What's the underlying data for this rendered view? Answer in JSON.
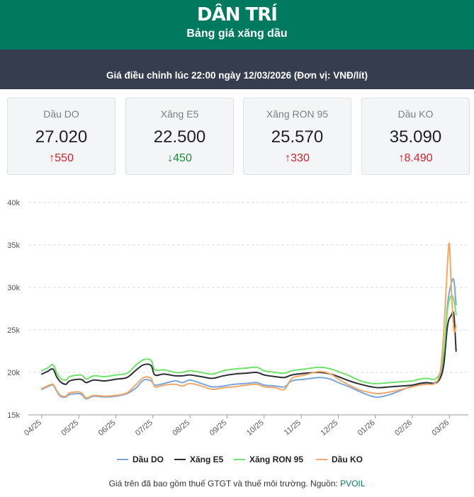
{
  "header": {
    "logo": "DÂN TRÍ",
    "title": "Bảng giá xăng dầu"
  },
  "info": {
    "text": "Giá điều chỉnh lúc 22:00 ngày 12/03/2026 (Đơn vị: VNĐ/lít)"
  },
  "cards": [
    {
      "label": "Dầu DO",
      "price": "27.020",
      "change": "550",
      "direction": "up"
    },
    {
      "label": "Xăng E5",
      "price": "22.500",
      "change": "450",
      "direction": "down"
    },
    {
      "label": "Xăng RON 95",
      "price": "25.570",
      "change": "330",
      "direction": "up"
    },
    {
      "label": "Dầu KO",
      "price": "35.090",
      "change": "8.490",
      "direction": "up"
    }
  ],
  "footer": {
    "text": "Giá trên đã bao gồm thuế GTGT và thuế môi trường. Nguồn: ",
    "source": "PVOIL"
  },
  "colors": {
    "header_bg": "#007a5e",
    "info_bg": "#363d4e",
    "up": "#d0222f",
    "down": "#1f8a3b"
  },
  "chart_data": {
    "type": "line",
    "title": "",
    "xlabel": "",
    "ylabel": "",
    "ylim": [
      15000,
      40000
    ],
    "yticks": [
      15000,
      20000,
      25000,
      30000,
      35000,
      40000
    ],
    "ytick_labels": [
      "15k",
      "20k",
      "25k",
      "30k",
      "35k",
      "40k"
    ],
    "xtick_labels": [
      "04/25",
      "05/25",
      "06/25",
      "07/25",
      "08/25",
      "09/25",
      "10/25",
      "11/25",
      "12/25",
      "01/26",
      "02/26",
      "03/26"
    ],
    "grid": true,
    "legend_position": "bottom",
    "series": [
      {
        "name": "Dầu DO",
        "color": "#7aa6d9",
        "values": [
          [
            0,
            18000
          ],
          [
            0.15,
            18300
          ],
          [
            0.3,
            18500
          ],
          [
            0.4,
            17800
          ],
          [
            0.5,
            17200
          ],
          [
            0.65,
            17100
          ],
          [
            0.75,
            17400
          ],
          [
            1.0,
            17500
          ],
          [
            1.1,
            17300
          ],
          [
            1.2,
            16900
          ],
          [
            1.4,
            17200
          ],
          [
            1.7,
            17100
          ],
          [
            2.0,
            17200
          ],
          [
            2.3,
            17500
          ],
          [
            2.55,
            18200
          ],
          [
            2.75,
            19100
          ],
          [
            2.95,
            19000
          ],
          [
            3.05,
            18500
          ],
          [
            3.3,
            18700
          ],
          [
            3.6,
            19000
          ],
          [
            3.8,
            18800
          ],
          [
            4.0,
            19100
          ],
          [
            4.3,
            18700
          ],
          [
            4.6,
            18300
          ],
          [
            4.9,
            18400
          ],
          [
            5.2,
            18600
          ],
          [
            5.5,
            18700
          ],
          [
            5.8,
            18800
          ],
          [
            6.0,
            18500
          ],
          [
            6.3,
            18400
          ],
          [
            6.55,
            18300
          ],
          [
            6.75,
            19000
          ],
          [
            7.1,
            19200
          ],
          [
            7.5,
            19400
          ],
          [
            7.8,
            19200
          ],
          [
            8.0,
            18800
          ],
          [
            8.3,
            18300
          ],
          [
            8.6,
            17700
          ],
          [
            8.9,
            17200
          ],
          [
            9.1,
            17100
          ],
          [
            9.4,
            17400
          ],
          [
            9.7,
            17900
          ],
          [
            10.0,
            18400
          ],
          [
            10.2,
            18600
          ],
          [
            10.4,
            18700
          ],
          [
            10.6,
            18800
          ],
          [
            10.75,
            19500
          ],
          [
            10.85,
            22000
          ],
          [
            10.95,
            28000
          ],
          [
            11.05,
            30500
          ],
          [
            11.12,
            30800
          ],
          [
            11.18,
            28000
          ]
        ]
      },
      {
        "name": "Xăng E5",
        "color": "#2e3036",
        "values": [
          [
            0,
            19800
          ],
          [
            0.15,
            20100
          ],
          [
            0.3,
            20400
          ],
          [
            0.4,
            19500
          ],
          [
            0.5,
            18900
          ],
          [
            0.65,
            18600
          ],
          [
            0.75,
            19000
          ],
          [
            1.0,
            19200
          ],
          [
            1.1,
            19100
          ],
          [
            1.2,
            18800
          ],
          [
            1.4,
            19100
          ],
          [
            1.7,
            19000
          ],
          [
            2.0,
            19200
          ],
          [
            2.3,
            19400
          ],
          [
            2.55,
            20300
          ],
          [
            2.75,
            20900
          ],
          [
            2.95,
            20800
          ],
          [
            3.05,
            19700
          ],
          [
            3.3,
            19800
          ],
          [
            3.6,
            19600
          ],
          [
            3.8,
            19600
          ],
          [
            4.0,
            19700
          ],
          [
            4.3,
            19500
          ],
          [
            4.6,
            19300
          ],
          [
            4.9,
            19600
          ],
          [
            5.2,
            19800
          ],
          [
            5.5,
            19900
          ],
          [
            5.8,
            20000
          ],
          [
            6.0,
            19700
          ],
          [
            6.3,
            19500
          ],
          [
            6.55,
            19400
          ],
          [
            6.75,
            19700
          ],
          [
            7.1,
            19900
          ],
          [
            7.5,
            20000
          ],
          [
            7.8,
            19800
          ],
          [
            8.0,
            19500
          ],
          [
            8.3,
            19000
          ],
          [
            8.6,
            18600
          ],
          [
            8.9,
            18300
          ],
          [
            9.1,
            18200
          ],
          [
            9.4,
            18300
          ],
          [
            9.7,
            18400
          ],
          [
            10.0,
            18500
          ],
          [
            10.2,
            18700
          ],
          [
            10.4,
            18800
          ],
          [
            10.6,
            18700
          ],
          [
            10.75,
            19300
          ],
          [
            10.85,
            21000
          ],
          [
            10.95,
            25500
          ],
          [
            11.05,
            26700
          ],
          [
            11.12,
            26800
          ],
          [
            11.18,
            22500
          ]
        ]
      },
      {
        "name": "Xăng RON 95",
        "color": "#6fe26a",
        "values": [
          [
            0,
            20200
          ],
          [
            0.15,
            20500
          ],
          [
            0.3,
            20900
          ],
          [
            0.4,
            20000
          ],
          [
            0.5,
            19300
          ],
          [
            0.65,
            19100
          ],
          [
            0.75,
            19500
          ],
          [
            1.0,
            19700
          ],
          [
            1.1,
            19600
          ],
          [
            1.2,
            19200
          ],
          [
            1.4,
            19600
          ],
          [
            1.7,
            19500
          ],
          [
            2.0,
            19700
          ],
          [
            2.3,
            19900
          ],
          [
            2.55,
            20900
          ],
          [
            2.75,
            21500
          ],
          [
            2.95,
            21400
          ],
          [
            3.05,
            20300
          ],
          [
            3.3,
            20300
          ],
          [
            3.6,
            20000
          ],
          [
            3.8,
            20000
          ],
          [
            4.0,
            20200
          ],
          [
            4.3,
            20000
          ],
          [
            4.6,
            19800
          ],
          [
            4.9,
            20200
          ],
          [
            5.2,
            20400
          ],
          [
            5.5,
            20500
          ],
          [
            5.8,
            20600
          ],
          [
            6.0,
            20200
          ],
          [
            6.3,
            20000
          ],
          [
            6.55,
            19900
          ],
          [
            6.75,
            20200
          ],
          [
            7.1,
            20400
          ],
          [
            7.5,
            20600
          ],
          [
            7.8,
            20400
          ],
          [
            8.0,
            20100
          ],
          [
            8.3,
            19600
          ],
          [
            8.6,
            19000
          ],
          [
            8.9,
            18700
          ],
          [
            9.1,
            18700
          ],
          [
            9.4,
            18800
          ],
          [
            9.7,
            18900
          ],
          [
            10.0,
            19000
          ],
          [
            10.2,
            19200
          ],
          [
            10.4,
            19300
          ],
          [
            10.6,
            19200
          ],
          [
            10.75,
            20000
          ],
          [
            10.85,
            22500
          ],
          [
            10.95,
            27500
          ],
          [
            11.05,
            29000
          ],
          [
            11.12,
            28500
          ],
          [
            11.18,
            26800
          ]
        ]
      },
      {
        "name": "Dầu KO",
        "color": "#f0a96a",
        "values": [
          [
            0,
            18100
          ],
          [
            0.15,
            18400
          ],
          [
            0.3,
            18600
          ],
          [
            0.4,
            17900
          ],
          [
            0.5,
            17300
          ],
          [
            0.65,
            17200
          ],
          [
            0.75,
            17600
          ],
          [
            1.0,
            17700
          ],
          [
            1.1,
            17500
          ],
          [
            1.2,
            17000
          ],
          [
            1.4,
            17300
          ],
          [
            1.7,
            17200
          ],
          [
            2.0,
            17300
          ],
          [
            2.3,
            17600
          ],
          [
            2.55,
            18600
          ],
          [
            2.75,
            19400
          ],
          [
            2.95,
            19300
          ],
          [
            3.05,
            18300
          ],
          [
            3.3,
            18500
          ],
          [
            3.6,
            18600
          ],
          [
            3.8,
            18400
          ],
          [
            4.0,
            18700
          ],
          [
            4.3,
            18400
          ],
          [
            4.6,
            18000
          ],
          [
            4.9,
            18200
          ],
          [
            5.2,
            18300
          ],
          [
            5.5,
            18500
          ],
          [
            5.8,
            18600
          ],
          [
            6.0,
            18300
          ],
          [
            6.3,
            18200
          ],
          [
            6.55,
            18000
          ],
          [
            6.75,
            19300
          ],
          [
            7.1,
            19700
          ],
          [
            7.5,
            20100
          ],
          [
            7.8,
            19800
          ],
          [
            8.0,
            19200
          ],
          [
            8.3,
            18500
          ],
          [
            8.6,
            17900
          ],
          [
            8.9,
            17600
          ],
          [
            9.1,
            17500
          ],
          [
            9.4,
            17700
          ],
          [
            9.7,
            18000
          ],
          [
            10.0,
            18300
          ],
          [
            10.2,
            18500
          ],
          [
            10.4,
            18600
          ],
          [
            10.6,
            18700
          ],
          [
            10.75,
            20000
          ],
          [
            10.85,
            25000
          ],
          [
            10.95,
            33000
          ],
          [
            11.0,
            35090
          ],
          [
            11.05,
            30000
          ],
          [
            11.12,
            25000
          ],
          [
            11.18,
            25500
          ]
        ]
      }
    ]
  }
}
